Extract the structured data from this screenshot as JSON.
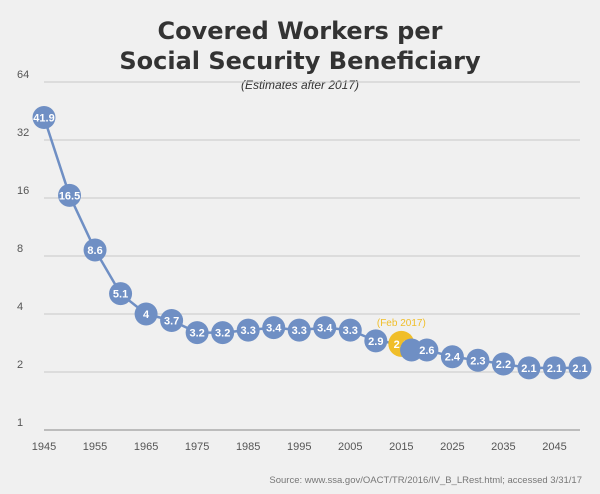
{
  "chart_data": {
    "type": "line",
    "title_line1": "Covered Workers per",
    "title_line2": "Social Security Beneficiary",
    "subtitle": "(Estimates after 2017)",
    "xlabel": "",
    "ylabel": "",
    "y_scale": "log2",
    "ylim": [
      1,
      64
    ],
    "xlim": [
      1945,
      2050
    ],
    "y_ticks": [
      1,
      2,
      4,
      8,
      16,
      32,
      64
    ],
    "x_ticks": [
      1945,
      1955,
      1965,
      1975,
      1985,
      1995,
      2005,
      2015,
      2025,
      2035,
      2045
    ],
    "grid": "horizontal",
    "series": [
      {
        "x": [
          1945,
          1950,
          1955,
          1960,
          1965,
          1970,
          1975,
          1980,
          1985,
          1990,
          1995,
          2000,
          2005,
          2010,
          2015,
          2017,
          2020,
          2025,
          2030,
          2035,
          2040,
          2045,
          2050
        ],
        "values": [
          41.9,
          16.5,
          8.6,
          5.1,
          4,
          3.7,
          3.2,
          3.2,
          3.3,
          3.4,
          3.3,
          3.4,
          3.3,
          2.9,
          2.8,
          2.6,
          2.6,
          2.4,
          2.3,
          2.2,
          2.1,
          2.1,
          2.1
        ],
        "labels": [
          "41.9",
          "16.5",
          "8.6",
          "5.1",
          "4",
          "3.7",
          "3.2",
          "3.2",
          "3.3",
          "3.4",
          "3.3",
          "3.4",
          "3.3",
          "2.9",
          "2.8",
          "",
          "2.6",
          "2.4",
          "2.3",
          "2.2",
          "2.1",
          "2.1",
          "2.1"
        ],
        "highlight_index": 14
      }
    ],
    "annotation": "(Feb 2017)",
    "colors": {
      "series": "#6f8fc4",
      "highlight": "#f0be29",
      "grid": "#c8c8c8",
      "axis": "#888888"
    },
    "source": "Source: www.ssa.gov/OACT/TR/2016/IV_B_LRest.html; accessed 3/31/17"
  }
}
